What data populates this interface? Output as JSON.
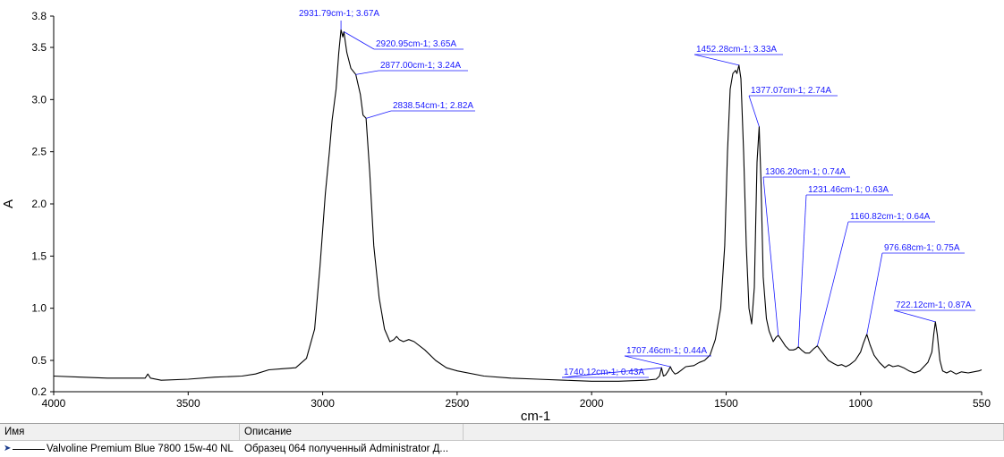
{
  "chart_data": {
    "type": "line",
    "xlabel": "cm-1",
    "ylabel": "A",
    "xlim": [
      4000,
      550
    ],
    "ylim": [
      0.2,
      3.8
    ],
    "x_reversed": true,
    "x_ticks": [
      4000,
      3500,
      3000,
      2500,
      2000,
      1500,
      1000,
      550
    ],
    "y_ticks": [
      0.2,
      0.5,
      1.0,
      1.5,
      2.0,
      2.5,
      3.0,
      3.5,
      3.8
    ],
    "y_tick_labels": [
      "0.2",
      "0.5",
      "1.0",
      "1.5",
      "2.0",
      "2.5",
      "3.0",
      "3.5",
      "3.8"
    ],
    "grid": false,
    "series": [
      {
        "name": "Valvoline Premium Blue 7800 15w-40 NL",
        "color": "#000000",
        "points": [
          [
            4000,
            0.35
          ],
          [
            3900,
            0.34
          ],
          [
            3800,
            0.33
          ],
          [
            3700,
            0.33
          ],
          [
            3660,
            0.33
          ],
          [
            3650,
            0.37
          ],
          [
            3640,
            0.33
          ],
          [
            3600,
            0.31
          ],
          [
            3500,
            0.32
          ],
          [
            3400,
            0.34
          ],
          [
            3300,
            0.35
          ],
          [
            3250,
            0.37
          ],
          [
            3200,
            0.41
          ],
          [
            3150,
            0.42
          ],
          [
            3100,
            0.43
          ],
          [
            3060,
            0.52
          ],
          [
            3030,
            0.8
          ],
          [
            3010,
            1.4
          ],
          [
            2990,
            2.1
          ],
          [
            2975,
            2.5
          ],
          [
            2965,
            2.8
          ],
          [
            2950,
            3.1
          ],
          [
            2940,
            3.45
          ],
          [
            2931.79,
            3.67
          ],
          [
            2925,
            3.6
          ],
          [
            2920.95,
            3.65
          ],
          [
            2910,
            3.45
          ],
          [
            2895,
            3.3
          ],
          [
            2877,
            3.24
          ],
          [
            2860,
            3.05
          ],
          [
            2850,
            2.85
          ],
          [
            2838.54,
            2.82
          ],
          [
            2825,
            2.3
          ],
          [
            2810,
            1.6
          ],
          [
            2790,
            1.1
          ],
          [
            2770,
            0.8
          ],
          [
            2750,
            0.68
          ],
          [
            2735,
            0.7
          ],
          [
            2725,
            0.73
          ],
          [
            2715,
            0.7
          ],
          [
            2700,
            0.68
          ],
          [
            2680,
            0.7
          ],
          [
            2660,
            0.68
          ],
          [
            2620,
            0.6
          ],
          [
            2580,
            0.5
          ],
          [
            2540,
            0.43
          ],
          [
            2500,
            0.4
          ],
          [
            2400,
            0.35
          ],
          [
            2300,
            0.33
          ],
          [
            2200,
            0.32
          ],
          [
            2100,
            0.31
          ],
          [
            2000,
            0.3
          ],
          [
            1900,
            0.3
          ],
          [
            1800,
            0.31
          ],
          [
            1760,
            0.32
          ],
          [
            1748,
            0.35
          ],
          [
            1740.12,
            0.43
          ],
          [
            1733,
            0.35
          ],
          [
            1725,
            0.36
          ],
          [
            1715,
            0.4
          ],
          [
            1707.46,
            0.44
          ],
          [
            1700,
            0.4
          ],
          [
            1690,
            0.37
          ],
          [
            1680,
            0.38
          ],
          [
            1670,
            0.4
          ],
          [
            1650,
            0.44
          ],
          [
            1620,
            0.45
          ],
          [
            1600,
            0.48
          ],
          [
            1580,
            0.5
          ],
          [
            1560,
            0.55
          ],
          [
            1540,
            0.7
          ],
          [
            1520,
            1.0
          ],
          [
            1505,
            1.6
          ],
          [
            1495,
            2.5
          ],
          [
            1485,
            3.1
          ],
          [
            1475,
            3.25
          ],
          [
            1465,
            3.28
          ],
          [
            1460,
            3.25
          ],
          [
            1452.28,
            3.33
          ],
          [
            1445,
            3.2
          ],
          [
            1435,
            2.5
          ],
          [
            1425,
            1.6
          ],
          [
            1415,
            1.0
          ],
          [
            1405,
            0.85
          ],
          [
            1395,
            1.2
          ],
          [
            1385,
            2.4
          ],
          [
            1377.07,
            2.74
          ],
          [
            1370,
            2.2
          ],
          [
            1362,
            1.3
          ],
          [
            1350,
            0.9
          ],
          [
            1340,
            0.78
          ],
          [
            1325,
            0.68
          ],
          [
            1315,
            0.72
          ],
          [
            1306.2,
            0.74
          ],
          [
            1295,
            0.7
          ],
          [
            1280,
            0.64
          ],
          [
            1265,
            0.6
          ],
          [
            1250,
            0.6
          ],
          [
            1240,
            0.61
          ],
          [
            1231.46,
            0.63
          ],
          [
            1220,
            0.6
          ],
          [
            1205,
            0.57
          ],
          [
            1190,
            0.57
          ],
          [
            1175,
            0.61
          ],
          [
            1160.82,
            0.64
          ],
          [
            1150,
            0.6
          ],
          [
            1135,
            0.55
          ],
          [
            1120,
            0.5
          ],
          [
            1100,
            0.47
          ],
          [
            1085,
            0.45
          ],
          [
            1070,
            0.46
          ],
          [
            1055,
            0.44
          ],
          [
            1040,
            0.46
          ],
          [
            1020,
            0.5
          ],
          [
            1000,
            0.58
          ],
          [
            990,
            0.66
          ],
          [
            976.68,
            0.75
          ],
          [
            965,
            0.65
          ],
          [
            950,
            0.55
          ],
          [
            930,
            0.48
          ],
          [
            910,
            0.43
          ],
          [
            895,
            0.46
          ],
          [
            880,
            0.44
          ],
          [
            860,
            0.45
          ],
          [
            840,
            0.43
          ],
          [
            820,
            0.4
          ],
          [
            800,
            0.38
          ],
          [
            780,
            0.4
          ],
          [
            765,
            0.44
          ],
          [
            750,
            0.48
          ],
          [
            735,
            0.58
          ],
          [
            728,
            0.75
          ],
          [
            722.12,
            0.87
          ],
          [
            715,
            0.75
          ],
          [
            705,
            0.5
          ],
          [
            695,
            0.4
          ],
          [
            680,
            0.38
          ],
          [
            665,
            0.4
          ],
          [
            645,
            0.37
          ],
          [
            625,
            0.39
          ],
          [
            600,
            0.38
          ],
          [
            580,
            0.39
          ],
          [
            560,
            0.4
          ],
          [
            550,
            0.41
          ]
        ]
      }
    ],
    "annotations": [
      {
        "text": "2931.79cm-1; 3.67A",
        "x": 2931.79,
        "y": 3.67
      },
      {
        "text": "2920.95cm-1; 3.65A",
        "x": 2920.95,
        "y": 3.65
      },
      {
        "text": "2877.00cm-1; 3.24A",
        "x": 2877.0,
        "y": 3.24
      },
      {
        "text": "2838.54cm-1; 2.82A",
        "x": 2838.54,
        "y": 2.82
      },
      {
        "text": "1740.12cm-1; 0.43A",
        "x": 1740.12,
        "y": 0.43
      },
      {
        "text": "1707.46cm-1; 0.44A",
        "x": 1707.46,
        "y": 0.44
      },
      {
        "text": "1452.28cm-1; 3.33A",
        "x": 1452.28,
        "y": 3.33
      },
      {
        "text": "1377.07cm-1; 2.74A",
        "x": 1377.07,
        "y": 2.74
      },
      {
        "text": "1306.20cm-1; 0.74A",
        "x": 1306.2,
        "y": 0.74
      },
      {
        "text": "1231.46cm-1; 0.63A",
        "x": 1231.46,
        "y": 0.63
      },
      {
        "text": "1160.82cm-1; 0.64A",
        "x": 1160.82,
        "y": 0.64
      },
      {
        "text": "976.68cm-1; 0.75A",
        "x": 976.68,
        "y": 0.75
      },
      {
        "text": "722.12cm-1; 0.87A",
        "x": 722.12,
        "y": 0.87
      }
    ]
  },
  "legend_table": {
    "headers": {
      "name": "Имя",
      "description": "Описание"
    },
    "rows": [
      {
        "name": "Valvoline Premium Blue 7800 15w-40 NL",
        "description": "Образец 064 полученный Administrator Д..."
      }
    ],
    "row_pointer_icon": "triangle-right-icon"
  }
}
